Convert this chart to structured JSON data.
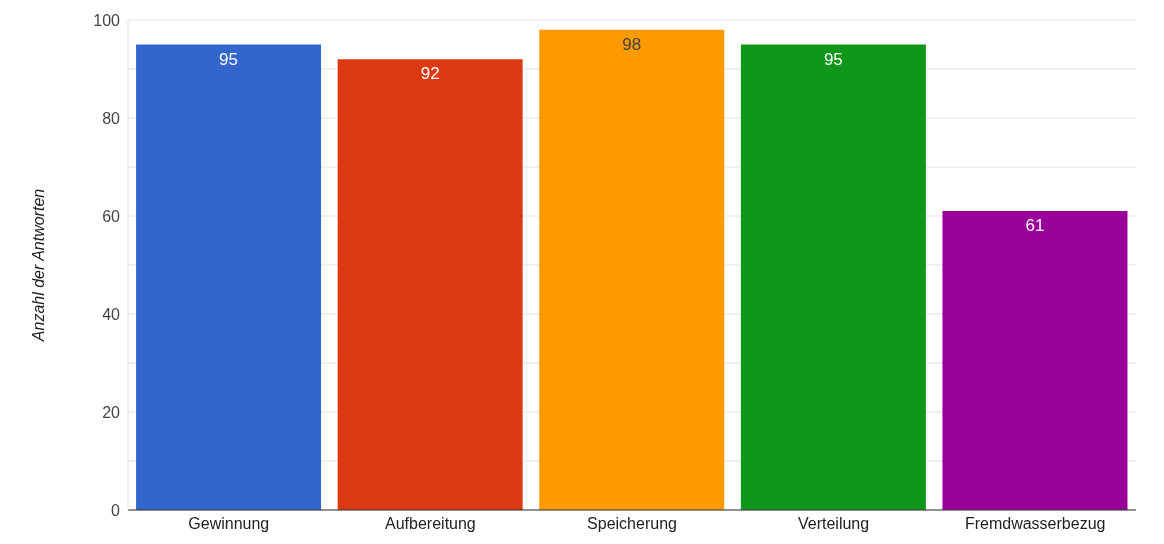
{
  "chart_data": {
    "type": "bar",
    "ylabel": "Anzahl der Antworten",
    "categories": [
      "Gewinnung",
      "Aufbereitung",
      "Speicherung",
      "Verteilung",
      "Fremdwasserbezug"
    ],
    "values": [
      95,
      92,
      98,
      95,
      61
    ],
    "colors": [
      "#3366cc",
      "#dc3912",
      "#ff9900",
      "#109618",
      "#990099"
    ],
    "ylim": [
      0,
      100
    ],
    "yticks": [
      0,
      {
        "value": 10,
        "label": null
      },
      20,
      {
        "value": 30,
        "label": null
      },
      40,
      {
        "value": 50,
        "label": null
      },
      60,
      {
        "value": 70,
        "label": null
      },
      80,
      {
        "value": 90,
        "label": null
      },
      100
    ],
    "grid": "y",
    "data_labels": true,
    "legend": false
  }
}
